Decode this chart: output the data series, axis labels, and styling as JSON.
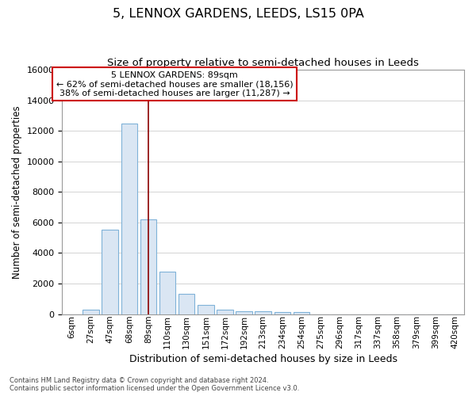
{
  "title": "5, LENNOX GARDENS, LEEDS, LS15 0PA",
  "subtitle": "Size of property relative to semi-detached houses in Leeds",
  "xlabel": "Distribution of semi-detached houses by size in Leeds",
  "ylabel": "Number of semi-detached properties",
  "bar_labels": [
    "6sqm",
    "27sqm",
    "47sqm",
    "68sqm",
    "89sqm",
    "110sqm",
    "130sqm",
    "151sqm",
    "172sqm",
    "192sqm",
    "213sqm",
    "234sqm",
    "254sqm",
    "275sqm",
    "296sqm",
    "317sqm",
    "337sqm",
    "358sqm",
    "379sqm",
    "399sqm",
    "420sqm"
  ],
  "bar_values": [
    0,
    280,
    5500,
    12500,
    6200,
    2800,
    1350,
    600,
    270,
    200,
    160,
    110,
    150,
    0,
    0,
    0,
    0,
    0,
    0,
    0,
    0
  ],
  "bar_color": "#dae6f3",
  "bar_edge_color": "#7fb2d8",
  "highlight_index": 4,
  "highlight_line_color": "#8b0000",
  "annotation_title": "5 LENNOX GARDENS: 89sqm",
  "annotation_line1": "← 62% of semi-detached houses are smaller (18,156)",
  "annotation_line2": "38% of semi-detached houses are larger (11,287) →",
  "annotation_box_facecolor": "#ffffff",
  "annotation_box_edgecolor": "#cc0000",
  "ylim_max": 16000,
  "yticks": [
    0,
    2000,
    4000,
    6000,
    8000,
    10000,
    12000,
    14000,
    16000
  ],
  "grid_color": "#cccccc",
  "plot_bg_color": "#ffffff",
  "fig_bg_color": "#ffffff",
  "footer_line1": "Contains HM Land Registry data © Crown copyright and database right 2024.",
  "footer_line2": "Contains public sector information licensed under the Open Government Licence v3.0."
}
